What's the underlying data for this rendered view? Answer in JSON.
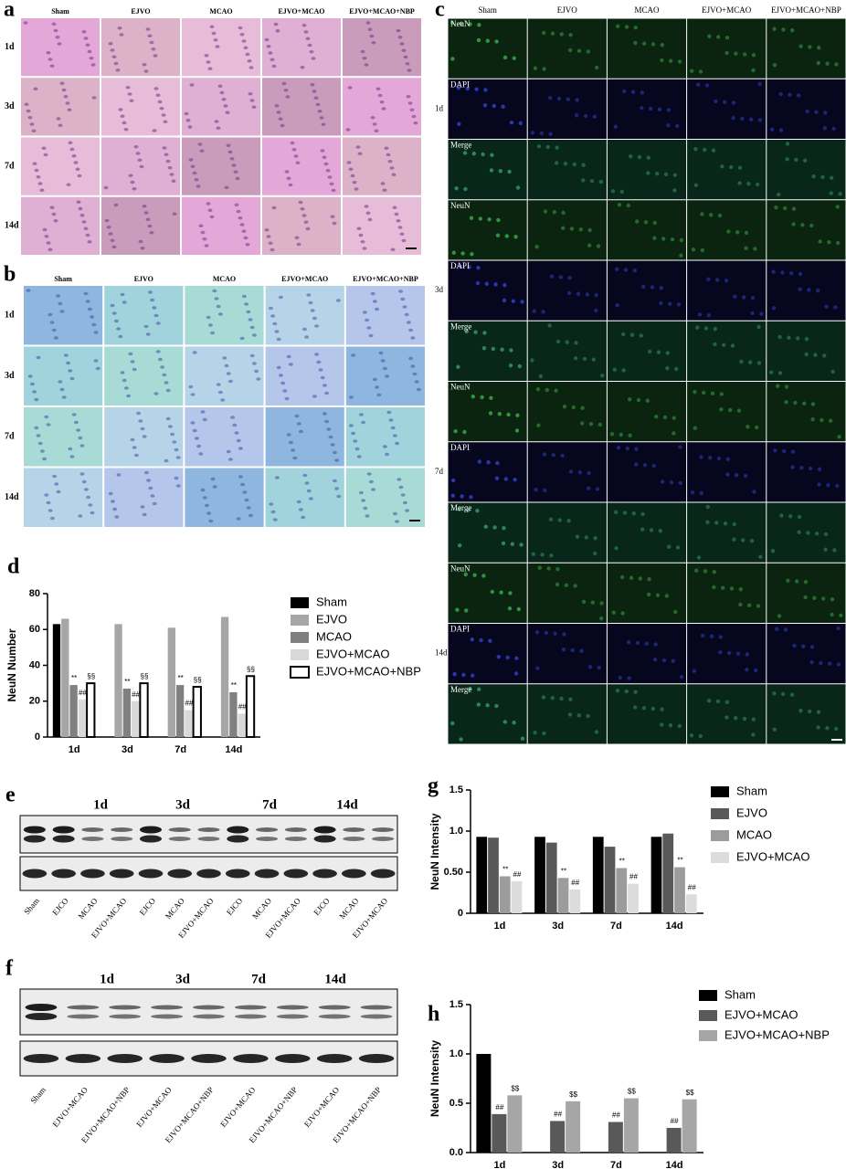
{
  "panels": {
    "a": {
      "label": "a",
      "columns": [
        "Sham",
        "EJVO",
        "MCAO",
        "EJVO+MCAO",
        "EJVO+MCAO+NBP"
      ],
      "rows": [
        "1d",
        "3d",
        "7d",
        "14d"
      ]
    },
    "b": {
      "label": "b",
      "columns": [
        "Sham",
        "EJVO",
        "MCAO",
        "EJVO+MCAO",
        "EJVO+MCAO+NBP"
      ],
      "rows": [
        "1d",
        "3d",
        "7d",
        "14d"
      ]
    },
    "c": {
      "label": "c",
      "columns": [
        "Sham",
        "EJVO",
        "MCAO",
        "EJVO+MCAO",
        "EJVO+MCAO+NBP"
      ],
      "rows": [
        "1d",
        "3d",
        "7d",
        "14d"
      ],
      "stains": [
        "NeuN",
        "DAPI",
        "Merge"
      ]
    },
    "e": {
      "label": "e",
      "timepoints": [
        "1d",
        "3d",
        "7d",
        "14d"
      ],
      "lanes": [
        "Sham",
        "EJCO",
        "MCAO",
        "EJVO+MCAO",
        "EJCO",
        "MCAO",
        "EJVO+MCAO",
        "EJCO",
        "MCAO",
        "EJVO+MCAO",
        "EJCO",
        "MCAO",
        "EJVO+MCAO"
      ]
    },
    "f": {
      "label": "f",
      "timepoints": [
        "1d",
        "3d",
        "7d",
        "14d"
      ],
      "lanes": [
        "Sham",
        "EJVO+MCAO",
        "EJVO+MCAO+NBP",
        "EJVO+MCAO",
        "EJVO+MCAO+NBP",
        "EJVO+MCAO",
        "EJVO+MCAO+NBP",
        "EJVO+MCAO",
        "EJVO+MCAO+NBP"
      ]
    }
  },
  "chart_data": [
    {
      "type": "bar",
      "label": "d",
      "y_label": "NeuN Number",
      "categories": [
        "1d",
        "3d",
        "7d",
        "14d"
      ],
      "ylim": [
        0,
        80
      ],
      "yticks": [
        0,
        20,
        40,
        60,
        80
      ],
      "legend": "right",
      "series": [
        {
          "name": "Sham",
          "color": "#000000",
          "values": [
            63,
            null,
            null,
            null
          ]
        },
        {
          "name": "EJVO",
          "color": "#a6a6a6",
          "values": [
            66,
            63,
            61,
            67
          ]
        },
        {
          "name": "MCAO",
          "color": "#808080",
          "values": [
            29,
            27,
            29,
            25
          ],
          "annotations": [
            "**",
            "**",
            "**",
            "**"
          ]
        },
        {
          "name": "EJVO+MCAO",
          "color": "#d9d9d9",
          "values": [
            21,
            20,
            15,
            13
          ],
          "annotations": [
            "##",
            "##",
            "##",
            "##"
          ]
        },
        {
          "name": "EJVO+MCAO+NBP",
          "color": "#ffffff",
          "values": [
            30,
            30,
            28,
            34
          ],
          "annotations": [
            "§§",
            "§§",
            "§§",
            "§§"
          ]
        }
      ]
    },
    {
      "type": "bar",
      "label": "g",
      "y_label": "NeuN Intensity",
      "categories": [
        "1d",
        "3d",
        "7d",
        "14d"
      ],
      "ylim": [
        0,
        1.5
      ],
      "yticks": [
        0,
        {
          "value": 0.5,
          "label": "0.50"
        },
        {
          "value": 1,
          "label": "1.0"
        },
        1.5
      ],
      "legend": "right",
      "series": [
        {
          "name": "Sham",
          "color": "#000000",
          "values": [
            0.93,
            0.93,
            0.93,
            0.93
          ]
        },
        {
          "name": "EJVO",
          "color": "#595959",
          "values": [
            0.92,
            0.86,
            0.81,
            0.97
          ]
        },
        {
          "name": "MCAO",
          "color": "#9c9c9c",
          "values": [
            0.45,
            0.43,
            0.55,
            0.56
          ],
          "annotations": [
            "**",
            "**",
            "**",
            "**"
          ]
        },
        {
          "name": "EJVO+MCAO",
          "color": "#dcdcdc",
          "values": [
            0.39,
            0.29,
            0.36,
            0.23
          ],
          "annotations": [
            "##",
            "##",
            "##",
            "##"
          ]
        }
      ]
    },
    {
      "type": "bar",
      "label": "h",
      "y_label": "NeuN Intensity",
      "categories": [
        "1d",
        "3d",
        "7d",
        "14d"
      ],
      "ylim": [
        0,
        1.5
      ],
      "yticks": [
        {
          "value": 0,
          "label": "0.0"
        },
        0.5,
        {
          "value": 1,
          "label": "1.0"
        },
        1.5
      ],
      "legend": "right",
      "series": [
        {
          "name": "Sham",
          "color": "#000000",
          "values": [
            1.0,
            null,
            null,
            null
          ]
        },
        {
          "name": "EJVO+MCAO",
          "color": "#595959",
          "values": [
            0.39,
            0.32,
            0.31,
            0.25
          ],
          "annotations": [
            "##",
            "##",
            "##",
            "##"
          ]
        },
        {
          "name": "EJVO+MCAO+NBP",
          "color": "#a6a6a6",
          "values": [
            0.58,
            0.52,
            0.55,
            0.54
          ],
          "annotations": [
            "$$",
            "$$",
            "$$",
            "$$"
          ]
        }
      ]
    }
  ]
}
